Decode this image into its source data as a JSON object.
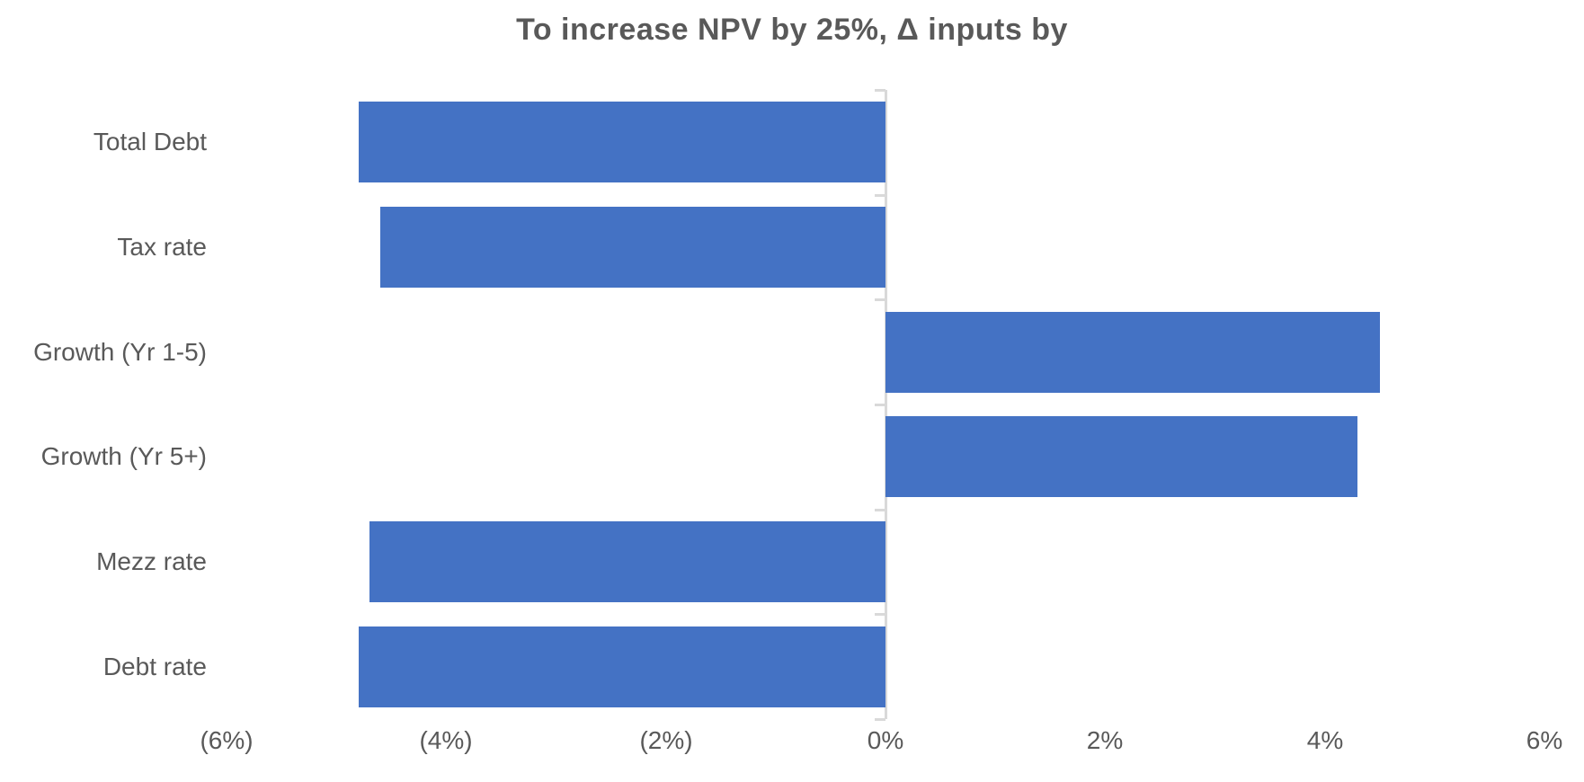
{
  "chart_data": {
    "type": "bar",
    "orientation": "horizontal",
    "title": "To increase NPV by 25%, Δ inputs by",
    "categories": [
      "Total Debt",
      "Tax rate",
      "Growth (Yr 1-5)",
      "Growth (Yr 5+)",
      "Mezz rate",
      "Debt rate"
    ],
    "values": [
      -4.8,
      -4.6,
      4.5,
      4.3,
      -4.7,
      -4.8
    ],
    "value_unit": "%",
    "xlabel": "",
    "ylabel": "",
    "xlim": [
      -6,
      6
    ],
    "x_ticks": [
      {
        "value": -6,
        "label": "(6%)"
      },
      {
        "value": -4,
        "label": "(4%)"
      },
      {
        "value": -2,
        "label": "(2%)"
      },
      {
        "value": 0,
        "label": "0%"
      },
      {
        "value": 2,
        "label": "2%"
      },
      {
        "value": 4,
        "label": "4%"
      },
      {
        "value": 6,
        "label": "6%"
      }
    ],
    "grid": false,
    "legend": false,
    "colors": {
      "bar": "#4472C4",
      "axis": "#D9D9D9",
      "text": "#595959",
      "background": "#FFFFFF"
    }
  }
}
